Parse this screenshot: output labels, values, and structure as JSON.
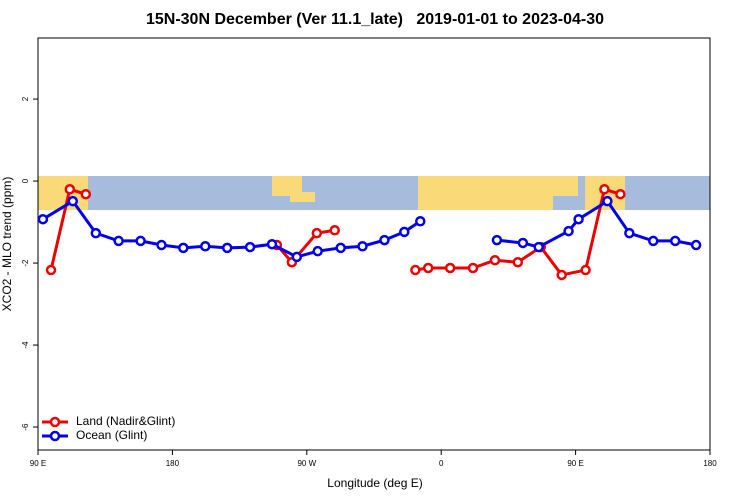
{
  "chart_data": {
    "type": "line",
    "title": "15N-30N December (Ver 11.1_late)   2019-01-01 to 2023-04-30",
    "x_label": "Longitude (deg E)",
    "y_label": "XCO2 - MLO trend (ppm)",
    "xlim": [
      90,
      540
    ],
    "xticks": [
      {
        "value": 90,
        "label": "90 E"
      },
      180,
      {
        "value": 270,
        "label": "90 W"
      },
      {
        "value": 360,
        "label": "0"
      },
      {
        "value": 450,
        "label": "90 E"
      },
      {
        "value": 540,
        "label": "180"
      }
    ],
    "ylim": [
      -6.56,
      3.49
    ],
    "yticks": [
      2,
      0,
      -2,
      -4,
      -6
    ],
    "legend": "bottom-left",
    "series": [
      {
        "name": "Land (Nadir&Glint)",
        "color": "#ee0000",
        "x": [
          98.7,
          111.3,
          122,
          null,
          250,
          260,
          276.7,
          288.7,
          null,
          342.7,
          351.3,
          366,
          381.3,
          396,
          411.3,
          426.7,
          440.7,
          456.7,
          469.3,
          480
        ],
        "values": [
          -2.17,
          -0.2,
          -0.32,
          null,
          -1.56,
          -1.98,
          -1.27,
          -1.2,
          null,
          -2.17,
          -2.12,
          -2.12,
          -2.12,
          -1.93,
          -1.98,
          -1.61,
          -2.29,
          -2.17,
          -0.2,
          -0.32
        ]
      },
      {
        "name": "Ocean (Glint)",
        "color": "#0000ee",
        "x": [
          93.3,
          113.3,
          128.7,
          144,
          158.7,
          172.7,
          187.3,
          202,
          216.7,
          232,
          246.7,
          263.3,
          277.3,
          292.7,
          307.3,
          322,
          335.3,
          346,
          null,
          397.3,
          414.7,
          425.3,
          445.3,
          452,
          471.3,
          486,
          502,
          516.7,
          530.7
        ],
        "values": [
          -0.93,
          -0.49,
          -1.27,
          -1.46,
          -1.46,
          -1.56,
          -1.63,
          -1.59,
          -1.63,
          -1.61,
          -1.54,
          -1.85,
          -1.71,
          -1.63,
          -1.59,
          -1.44,
          -1.24,
          -0.98,
          null,
          -1.44,
          -1.51,
          -1.61,
          -1.22,
          -0.93,
          -0.49,
          -1.27,
          -1.46,
          -1.46,
          -1.56
        ]
      }
    ]
  }
}
